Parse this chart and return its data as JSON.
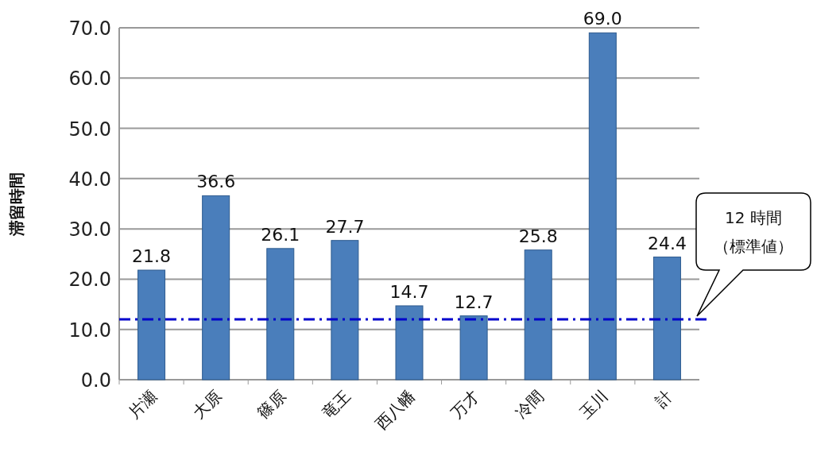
{
  "chart_data": {
    "type": "bar",
    "ylabel": "滞留時間",
    "categories": [
      "片瀬",
      "大原",
      "篠原",
      "竜王",
      "西八幡",
      "万才",
      "冷間",
      "玉川",
      "計"
    ],
    "values": [
      21.8,
      36.6,
      26.1,
      27.7,
      14.7,
      12.7,
      25.8,
      69.0,
      24.4
    ],
    "color": "#4a7ebb",
    "value_labels": [
      "21.8",
      "36.6",
      "26.1",
      "27.7",
      "14.7",
      "12.7",
      "25.8",
      "69.0",
      "24.4"
    ],
    "annotations": [
      "12 時間",
      "（標準値）"
    ],
    "ylim": [
      0,
      70
    ],
    "yticks": [
      {
        "value": 0,
        "label": "0.0"
      },
      {
        "value": 10,
        "label": "10.0"
      },
      {
        "value": 20,
        "label": "20.0"
      },
      {
        "value": 30,
        "label": "30.0"
      },
      {
        "value": 40,
        "label": "40.0"
      },
      {
        "value": 50,
        "label": "50.0"
      },
      {
        "value": 60,
        "label": "60.0"
      },
      {
        "value": 70,
        "label": "70.0"
      }
    ],
    "grid": "y",
    "ref_lines": [
      {
        "axis": "y",
        "value": 12,
        "color": "#0000cc",
        "line_style": "dashdot"
      }
    ]
  }
}
